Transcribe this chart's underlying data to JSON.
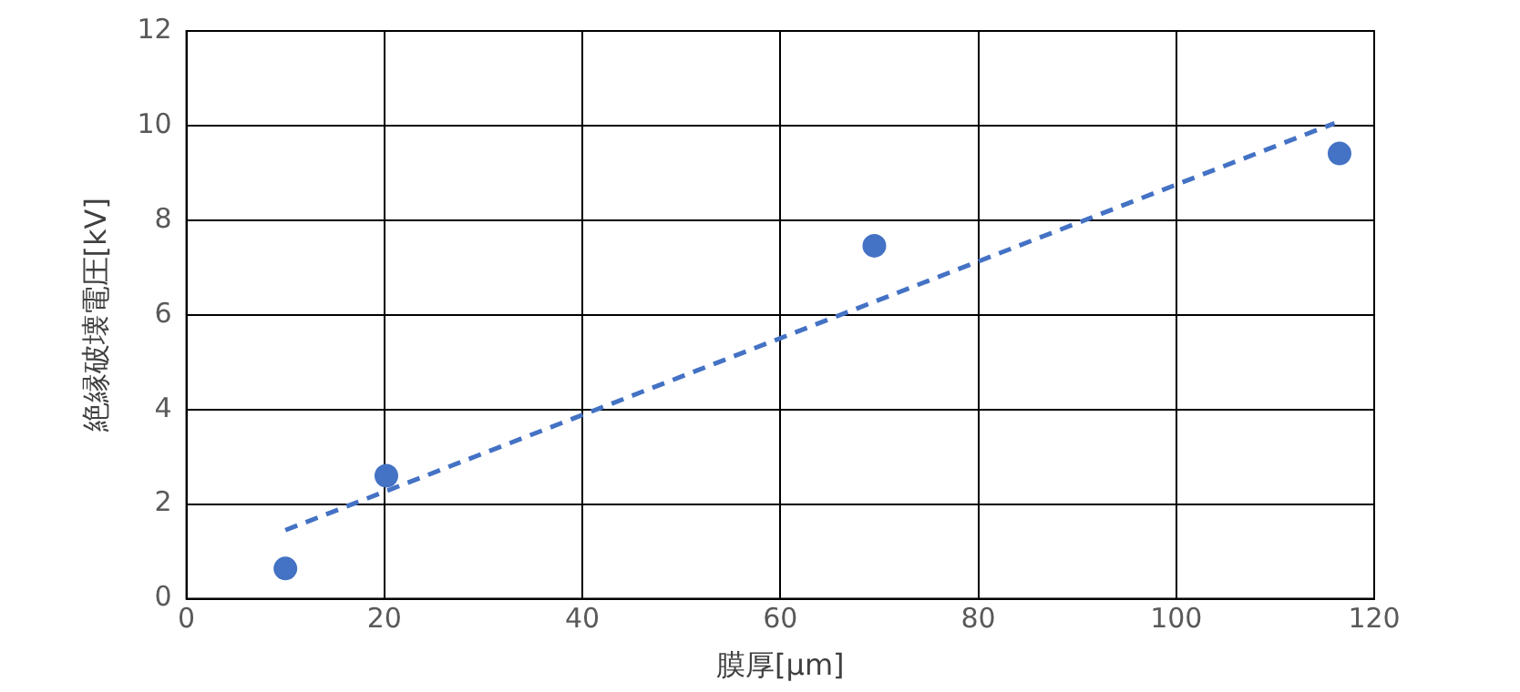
{
  "chart_data": {
    "type": "scatter",
    "xlabel": "膜厚[μm]",
    "ylabel": "絶縁破壊電圧[kV]",
    "xlim": [
      0,
      120
    ],
    "xticks": [
      0,
      20,
      40,
      60,
      80,
      100,
      120
    ],
    "ylim": [
      0,
      12
    ],
    "yticks": [
      0,
      2,
      4,
      6,
      8,
      10,
      12
    ],
    "grid": true,
    "legend": false,
    "series": [
      {
        "marker": "circle",
        "color": "#4472c4",
        "x": [
          10,
          20.2,
          69.5,
          116.5
        ],
        "values": [
          0.64,
          2.6,
          7.46,
          9.41
        ]
      },
      {
        "type": "line",
        "color": "#4472c4",
        "line_style": "dashed",
        "x": [
          10,
          116
        ],
        "values": [
          1.45,
          10.05
        ]
      }
    ]
  }
}
